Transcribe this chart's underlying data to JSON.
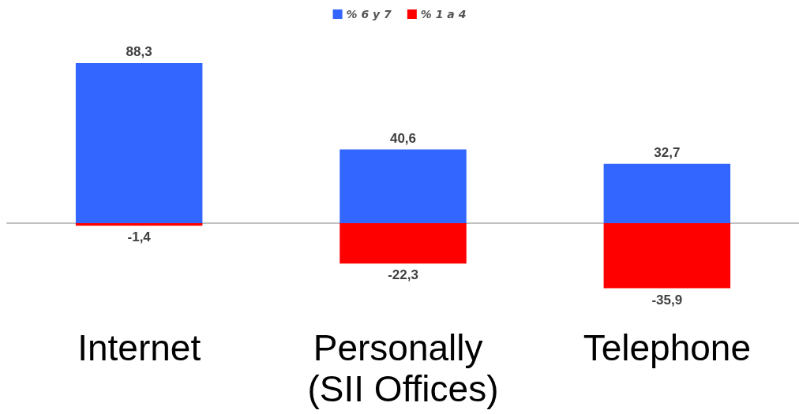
{
  "chart_data": {
    "type": "bar",
    "categories": [
      "Internet",
      "Personally (SII Offices)",
      "Telephone"
    ],
    "series": [
      {
        "name": "% 6 y 7",
        "color": "#3366ff",
        "values": [
          88.3,
          40.6,
          32.7
        ],
        "value_labels": [
          "88,3",
          "40,6",
          "32,7"
        ]
      },
      {
        "name": "% 1 a 4",
        "color": "#ff0000",
        "values": [
          -1.4,
          -22.3,
          -35.9
        ],
        "value_labels": [
          "-1,4",
          "-22,3",
          "-35,9"
        ]
      }
    ],
    "stacked": true,
    "tick_labels": "x",
    "legend": "top",
    "grid": false
  }
}
